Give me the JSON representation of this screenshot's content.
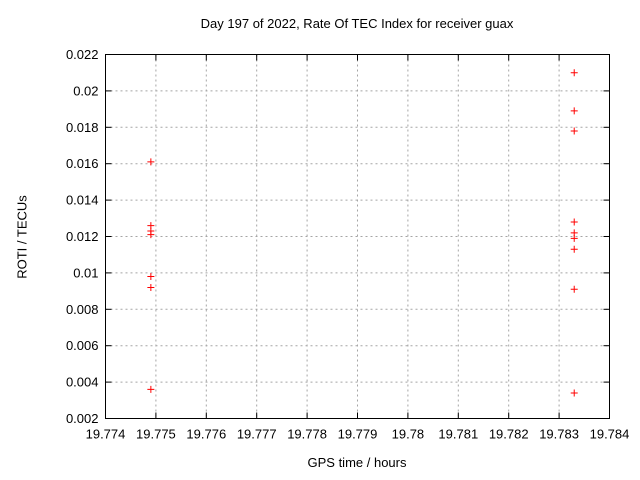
{
  "chart_data": {
    "type": "scatter",
    "title": "Day 197 of 2022, Rate Of TEC Index for receiver guax",
    "xlabel": "GPS time / hours",
    "ylabel": "ROTI / TECUs",
    "xlim": [
      19.774,
      19.784
    ],
    "ylim": [
      0.002,
      0.022
    ],
    "x_ticks": [
      19.774,
      19.775,
      19.776,
      19.777,
      19.778,
      19.779,
      19.78,
      19.781,
      19.782,
      19.783,
      19.784
    ],
    "x_tick_labels": [
      "19.774",
      "19.775",
      "19.776",
      "19.777",
      "19.778",
      "19.779",
      "19.78",
      "19.781",
      "19.782",
      "19.783",
      "19.784"
    ],
    "y_ticks": [
      0.002,
      0.004,
      0.006,
      0.008,
      0.01,
      0.012,
      0.014,
      0.016,
      0.018,
      0.02,
      0.022
    ],
    "y_tick_labels": [
      "0.002",
      "0.004",
      "0.006",
      "0.008",
      "0.01",
      "0.012",
      "0.014",
      "0.016",
      "0.018",
      "0.02",
      "0.022"
    ],
    "grid": true,
    "legend": "none",
    "marker": "plus",
    "marker_color": "#ff0000",
    "grid_color": "#a5a5a5",
    "border_color": "#000000",
    "series": [
      {
        "points": [
          [
            19.7749,
            0.0161
          ],
          [
            19.7749,
            0.0126
          ],
          [
            19.7749,
            0.0123
          ],
          [
            19.7749,
            0.0121
          ],
          [
            19.7749,
            0.0098
          ],
          [
            19.7749,
            0.0092
          ],
          [
            19.7749,
            0.0036
          ],
          [
            19.7833,
            0.021
          ],
          [
            19.7833,
            0.0189
          ],
          [
            19.7833,
            0.0178
          ],
          [
            19.7833,
            0.0128
          ],
          [
            19.7833,
            0.0122
          ],
          [
            19.7833,
            0.0119
          ],
          [
            19.7833,
            0.0113
          ],
          [
            19.7833,
            0.0091
          ],
          [
            19.7833,
            0.0034
          ]
        ]
      }
    ]
  }
}
